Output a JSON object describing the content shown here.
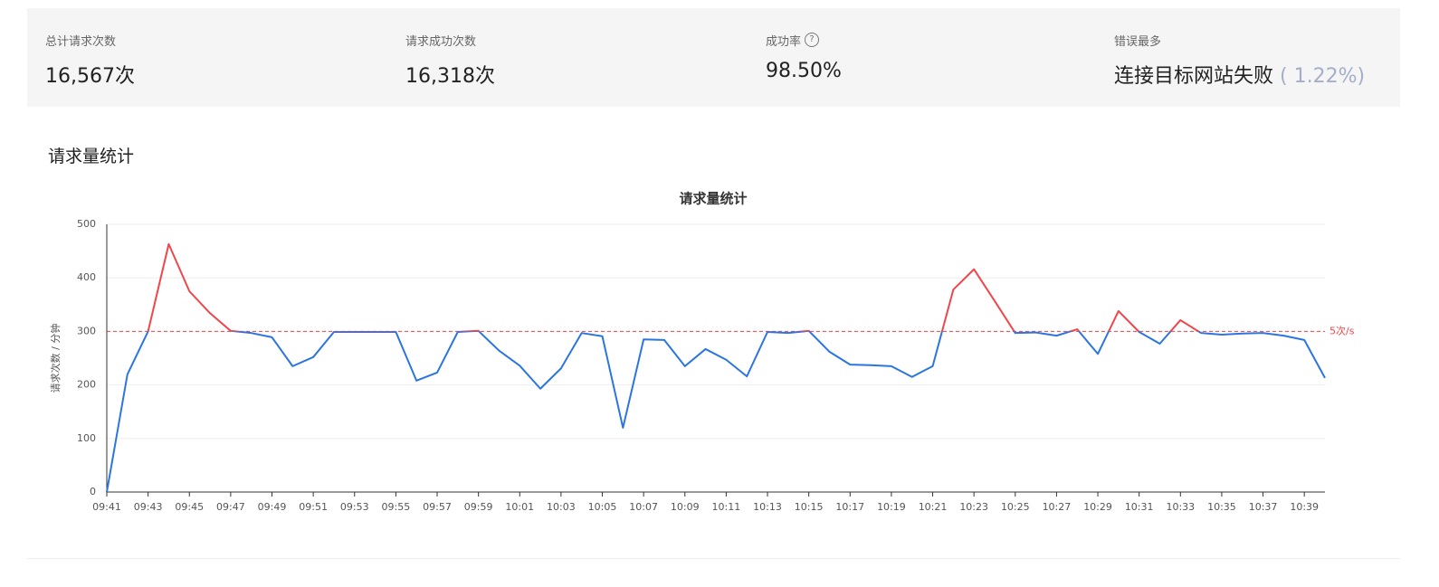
{
  "stats": [
    {
      "label": "总计请求次数",
      "value": "16,567次"
    },
    {
      "label": "请求成功次数",
      "value": "16,318次"
    },
    {
      "label": "成功率",
      "value": "98.50%"
    },
    {
      "label": "错误最多",
      "value": "连接目标网站失败",
      "detail": "( 1.22%)"
    }
  ],
  "section_title": "请求量统计",
  "chart_data": {
    "type": "line",
    "title": "请求量统计",
    "y_label": "请求次数 / 分钟",
    "categories": [
      "09:41",
      null,
      "09:43",
      null,
      "09:45",
      null,
      "09:47",
      null,
      "09:49",
      null,
      "09:51",
      null,
      "09:53",
      null,
      "09:55",
      null,
      "09:57",
      null,
      "09:59",
      null,
      "10:01",
      null,
      "10:03",
      null,
      "10:05",
      null,
      "10:07",
      null,
      "10:09",
      null,
      "10:11",
      null,
      "10:13",
      null,
      "10:15",
      null,
      "10:17",
      null,
      "10:19",
      null,
      "10:21",
      null,
      "10:23",
      null,
      "10:25",
      null,
      "10:27",
      null,
      "10:29",
      null,
      "10:31",
      null,
      "10:33",
      null,
      "10:35",
      null,
      "10:37",
      null,
      "10:39",
      null
    ],
    "series": [
      {
        "color": "#2a75e0",
        "above_color": "#f0464a",
        "values": [
          0,
          220,
          300,
          463,
          375,
          334,
          301,
          297,
          289,
          235,
          252,
          299,
          299,
          299,
          299,
          208,
          223,
          299,
          301,
          264,
          236,
          193,
          231,
          297,
          291,
          120,
          285,
          284,
          235,
          267,
          247,
          216,
          299,
          297,
          301,
          262,
          238,
          237,
          235,
          215,
          235,
          378,
          416,
          357,
          297,
          298,
          292,
          304,
          258,
          338,
          299,
          277,
          321,
          297,
          294,
          296,
          297,
          292,
          284,
          213
        ]
      }
    ],
    "ylim": [
      0,
      500
    ],
    "yticks": [
      0,
      100,
      200,
      300,
      400,
      500
    ],
    "grid": true,
    "mark_line": {
      "value": 300,
      "label": "5次/s",
      "color": "#e8474a"
    }
  }
}
